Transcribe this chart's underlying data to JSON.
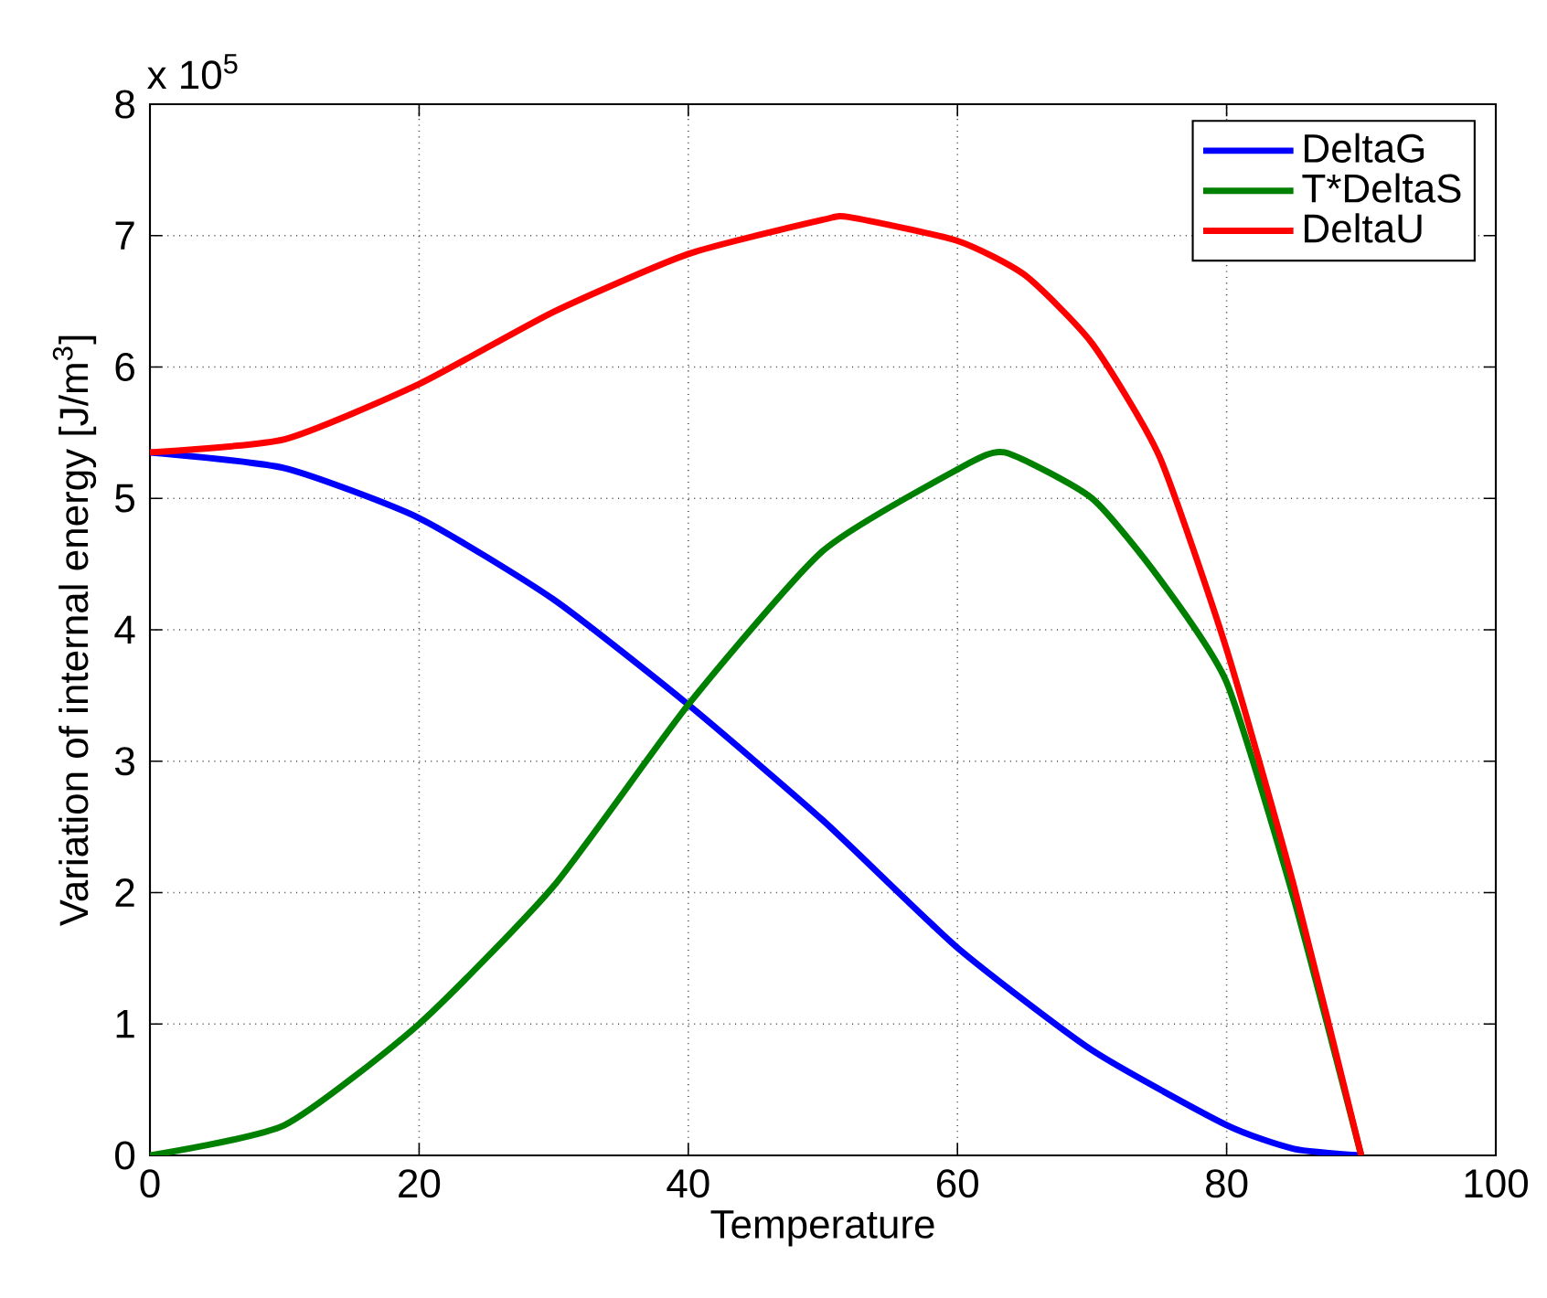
{
  "chart_data": {
    "type": "line",
    "xlabel": "Temperature",
    "ylabel": "Variation of internal energy [J/m$^{3}$]",
    "annotations": [
      "x 10$^{5}$"
    ],
    "xlim": [
      0,
      100
    ],
    "ylim": [
      0,
      8
    ],
    "xticks": [
      0,
      20,
      40,
      60,
      80,
      100
    ],
    "yticks": [
      0,
      1,
      2,
      3,
      4,
      5,
      6,
      7,
      8
    ],
    "grid": true,
    "legend": "top right",
    "series": [
      {
        "name": "DeltaG",
        "color": "#0000ff",
        "x": [
          0,
          10,
          20,
          30,
          40,
          50,
          60,
          70,
          80,
          85,
          90
        ],
        "values": [
          5.35,
          5.23,
          4.85,
          4.23,
          3.43,
          2.55,
          1.58,
          0.8,
          0.23,
          0.05,
          0
        ]
      },
      {
        "name": "T*DeltaS",
        "color": "#008000",
        "x": [
          0,
          10,
          20,
          30,
          40,
          50,
          60,
          63.5,
          70,
          75,
          80,
          85,
          90
        ],
        "values": [
          0,
          0.23,
          1.0,
          2.05,
          3.43,
          4.6,
          5.22,
          5.35,
          5.0,
          4.39,
          3.6,
          1.95,
          0
        ]
      },
      {
        "name": "DeltaU",
        "color": "#ff0000",
        "x": [
          0,
          10,
          20,
          30,
          40,
          50,
          52,
          60,
          65,
          70,
          75,
          80,
          85,
          90
        ],
        "values": [
          5.35,
          5.45,
          5.87,
          6.42,
          6.86,
          7.12,
          7.14,
          6.96,
          6.7,
          6.18,
          5.32,
          3.85,
          2.05,
          0
        ]
      }
    ]
  }
}
